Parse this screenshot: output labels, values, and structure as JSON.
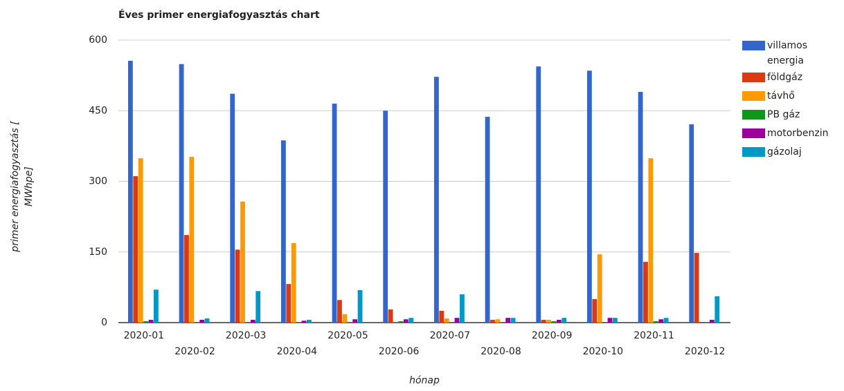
{
  "chart_data": {
    "type": "bar",
    "title": "Éves primer energiafogyasztás chart",
    "x_label": "hónap",
    "y_label": "primer energiafogyasztás [ MWhpe]",
    "categories": [
      "2020-01",
      "2020-02",
      "2020-03",
      "2020-04",
      "2020-05",
      "2020-06",
      "2020-07",
      "2020-08",
      "2020-09",
      "2020-10",
      "2020-11",
      "2020-12"
    ],
    "series": [
      {
        "name": "villamos energia",
        "color": "#3366cc",
        "values": [
          556,
          549,
          486,
          387,
          465,
          450,
          522,
          437,
          544,
          535,
          490,
          421
        ]
      },
      {
        "name": "földgáz",
        "color": "#dc3912",
        "values": [
          311,
          186,
          155,
          82,
          48,
          28,
          25,
          6,
          6,
          50,
          129,
          148
        ]
      },
      {
        "name": "távhő",
        "color": "#ff9900",
        "values": [
          349,
          352,
          257,
          169,
          18,
          0,
          9,
          7,
          6,
          145,
          349,
          0
        ]
      },
      {
        "name": "PB gáz",
        "color": "#109618",
        "values": [
          3,
          0,
          0,
          0,
          0,
          3,
          0,
          0,
          3,
          0,
          3,
          0
        ]
      },
      {
        "name": "motorbenzin",
        "color": "#990099",
        "values": [
          6,
          6,
          6,
          4,
          7,
          7,
          10,
          10,
          6,
          10,
          7,
          6
        ]
      },
      {
        "name": "gázolaj",
        "color": "#0099c6",
        "values": [
          70,
          9,
          67,
          6,
          69,
          10,
          60,
          10,
          10,
          10,
          10,
          56
        ]
      }
    ],
    "ylim": [
      0,
      600
    ],
    "yticks": [
      0,
      150,
      300,
      450,
      600
    ],
    "grid": true,
    "legend": "right"
  }
}
